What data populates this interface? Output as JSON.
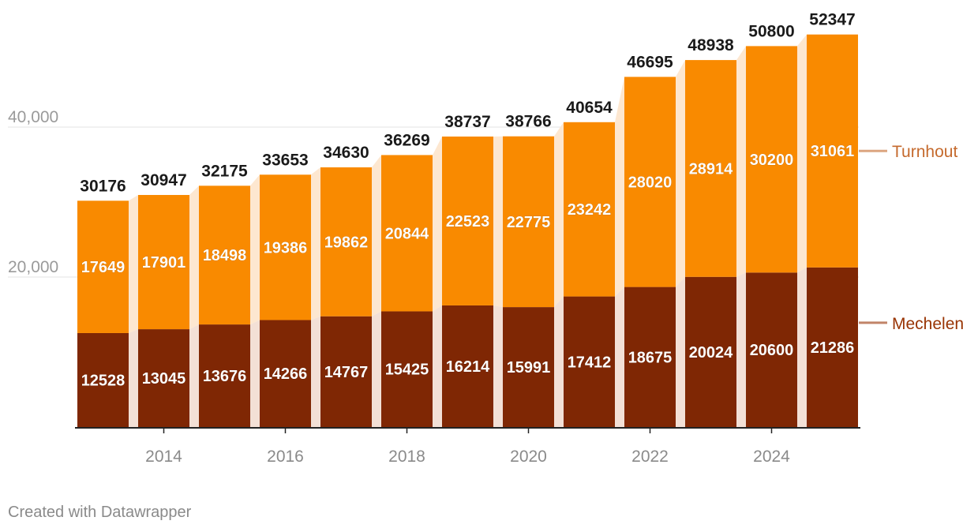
{
  "chart_data": {
    "type": "bar",
    "stacked": true,
    "x": [
      2013,
      2014,
      2015,
      2016,
      2017,
      2018,
      2019,
      2020,
      2021,
      2022,
      2023,
      2024,
      2025
    ],
    "series": [
      {
        "name": "Mechelen",
        "color": "#7f2704",
        "values": [
          12528,
          13045,
          13676,
          14266,
          14767,
          15425,
          16214,
          15991,
          17412,
          18675,
          20024,
          20600,
          21286
        ]
      },
      {
        "name": "Turnhout",
        "color": "#f98a00",
        "values": [
          17649,
          17901,
          18498,
          19386,
          19862,
          20844,
          22523,
          22775,
          23242,
          28020,
          28914,
          30200,
          31061
        ]
      }
    ],
    "totals": [
      30176,
      30947,
      32175,
      33653,
      34630,
      36269,
      38737,
      38766,
      40654,
      46695,
      48938,
      50800,
      52347
    ],
    "xticks": [
      2014,
      2016,
      2018,
      2020,
      2022,
      2024
    ],
    "xtick_labels": [
      "2014",
      "2016",
      "2018",
      "2020",
      "2022",
      "2024"
    ],
    "yticks": [
      20000,
      40000
    ],
    "ytick_labels": [
      "20,000",
      "40,000"
    ],
    "ylim": [
      0,
      56000
    ],
    "grid": true,
    "legend": "right-inline",
    "legend_labels": [
      "Turnhout",
      "Mechelen"
    ],
    "legend_colors": [
      "#c56a2d",
      "#993404"
    ]
  },
  "footer": {
    "credit": "Created with Datawrapper"
  }
}
